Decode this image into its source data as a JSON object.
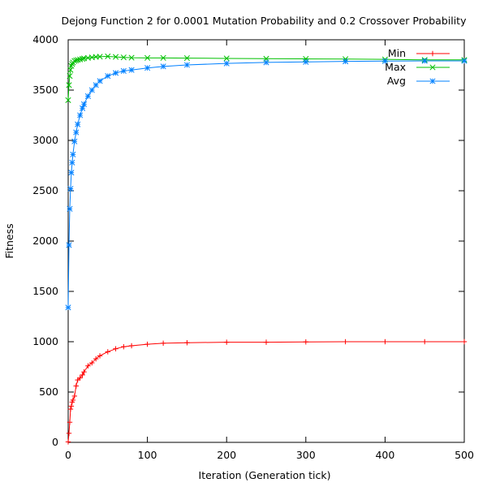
{
  "chart_data": {
    "type": "line",
    "title": "Dejong Function 2 for 0.0001 Mutation Probability and 0.2 Crossover Probability",
    "xlabel": "Iteration (Generation tick)",
    "ylabel": "Fitness",
    "xlim": [
      0,
      500
    ],
    "ylim": [
      0,
      4000
    ],
    "xticks": [
      0,
      100,
      200,
      300,
      400,
      500
    ],
    "yticks": [
      0,
      500,
      1000,
      1500,
      2000,
      2500,
      3000,
      3500,
      4000
    ],
    "grid": false,
    "legend_position": "top-right",
    "x": [
      0,
      1,
      2,
      3,
      4,
      5,
      6,
      8,
      10,
      12,
      15,
      18,
      20,
      25,
      30,
      35,
      40,
      50,
      60,
      70,
      80,
      100,
      120,
      150,
      200,
      250,
      300,
      350,
      400,
      450,
      500
    ],
    "series": [
      {
        "name": "Min",
        "color": "#ff0000",
        "marker": "plus",
        "values": [
          5,
          90,
          200,
          330,
          360,
          400,
          420,
          460,
          560,
          620,
          640,
          670,
          700,
          760,
          790,
          830,
          860,
          900,
          930,
          950,
          960,
          975,
          985,
          990,
          995,
          995,
          998,
          1000,
          1000,
          1000,
          1000
        ]
      },
      {
        "name": "Max",
        "color": "#00c000",
        "marker": "x",
        "values": [
          3400,
          3550,
          3640,
          3700,
          3740,
          3760,
          3775,
          3790,
          3795,
          3800,
          3805,
          3810,
          3815,
          3820,
          3825,
          3830,
          3832,
          3835,
          3830,
          3825,
          3822,
          3820,
          3820,
          3818,
          3815,
          3812,
          3810,
          3808,
          3805,
          3800,
          3800
        ]
      },
      {
        "name": "Avg",
        "color": "#0080ff",
        "marker": "asterisk",
        "values": [
          1340,
          1960,
          2320,
          2520,
          2680,
          2780,
          2860,
          2990,
          3080,
          3160,
          3250,
          3320,
          3360,
          3440,
          3500,
          3550,
          3590,
          3640,
          3670,
          3690,
          3700,
          3720,
          3735,
          3750,
          3765,
          3775,
          3780,
          3785,
          3788,
          3790,
          3790
        ]
      }
    ]
  }
}
